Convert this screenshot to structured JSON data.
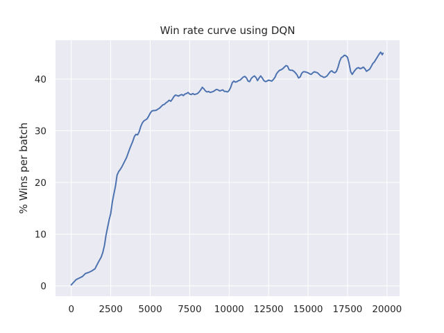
{
  "chart_data": {
    "type": "line",
    "title": "Win rate curve using DQN",
    "xlabel": "",
    "ylabel": "% Wins per batch",
    "xlim": [
      -1000,
      20800
    ],
    "ylim": [
      -2,
      47.5
    ],
    "xticks": [
      0,
      2500,
      5000,
      7500,
      10000,
      12500,
      15000,
      17500,
      20000
    ],
    "xtick_labels": [
      "0",
      "2500",
      "5000",
      "7500",
      "10000",
      "12500",
      "15000",
      "17500",
      "20000"
    ],
    "yticks": [
      0,
      10,
      20,
      30,
      40
    ],
    "ytick_labels": [
      "0",
      "10",
      "20",
      "30",
      "40"
    ],
    "grid": true,
    "legend": "none",
    "colors": {
      "line": "#4c72b0",
      "background": "#eaeaf2",
      "grid": "#ffffff"
    },
    "series": [
      {
        "x": [
          0,
          150,
          300,
          500,
          700,
          900,
          1100,
          1300,
          1500,
          1700,
          1900,
          2000,
          2100,
          2200,
          2300,
          2400,
          2500,
          2600,
          2700,
          2800,
          2900,
          3000,
          3100,
          3200,
          3300,
          3500,
          3700,
          3900,
          4000,
          4100,
          4200,
          4300,
          4400,
          4500,
          4600,
          4700,
          4800,
          4900,
          5000,
          5100,
          5200,
          5300,
          5400,
          5500,
          5600,
          5700,
          5800,
          5900,
          6000,
          6100,
          6200,
          6300,
          6400,
          6500,
          6600,
          6700,
          6800,
          6900,
          7000,
          7100,
          7200,
          7300,
          7400,
          7500,
          7600,
          7700,
          7800,
          7900,
          8000,
          8100,
          8200,
          8300,
          8400,
          8500,
          8600,
          8700,
          8800,
          8900,
          9000,
          9100,
          9200,
          9300,
          9400,
          9500,
          9600,
          9700,
          9800,
          9900,
          10000,
          10100,
          10200,
          10300,
          10400,
          10500,
          10600,
          10700,
          10800,
          10900,
          11000,
          11100,
          11200,
          11300,
          11400,
          11500,
          11600,
          11700,
          11800,
          11900,
          12000,
          12100,
          12200,
          12300,
          12400,
          12500,
          12600,
          12700,
          12800,
          12900,
          13000,
          13100,
          13200,
          13300,
          13400,
          13500,
          13600,
          13700,
          13800,
          13900,
          14000,
          14100,
          14200,
          14300,
          14400,
          14500,
          14600,
          14700,
          14800,
          14900,
          15000,
          15100,
          15200,
          15300,
          15400,
          15500,
          15600,
          15700,
          15800,
          15900,
          16000,
          16100,
          16200,
          16300,
          16400,
          16500,
          16600,
          16700,
          16800,
          16900,
          17000,
          17100,
          17200,
          17300,
          17400,
          17500,
          17600,
          17700,
          17800,
          17900,
          18000,
          18100,
          18200,
          18300,
          18400,
          18500,
          18600,
          18700,
          18800,
          18900,
          19000,
          19100,
          19200,
          19300,
          19400,
          19500,
          19600,
          19700,
          19750
        ],
        "y": [
          0.2,
          0.7,
          1.2,
          1.5,
          1.8,
          2.4,
          2.6,
          2.9,
          3.3,
          4.5,
          5.6,
          6.5,
          7.8,
          9.8,
          11.3,
          12.8,
          14.0,
          16.2,
          17.8,
          19.3,
          21.4,
          22.1,
          22.5,
          23.0,
          23.6,
          24.8,
          26.5,
          28.0,
          28.9,
          29.3,
          29.2,
          29.8,
          30.8,
          31.5,
          31.9,
          32.1,
          32.3,
          32.8,
          33.4,
          33.8,
          33.9,
          33.9,
          34.0,
          34.2,
          34.4,
          34.7,
          35.0,
          35.1,
          35.4,
          35.6,
          35.9,
          35.7,
          36.1,
          36.6,
          36.9,
          36.8,
          36.7,
          36.9,
          37.0,
          36.8,
          37.1,
          37.2,
          37.4,
          37.1,
          37.0,
          37.2,
          37.0,
          37.1,
          37.2,
          37.5,
          37.9,
          38.4,
          38.1,
          37.7,
          37.5,
          37.6,
          37.4,
          37.5,
          37.6,
          37.8,
          38.0,
          37.9,
          37.7,
          37.8,
          37.9,
          37.6,
          37.6,
          37.5,
          37.8,
          38.4,
          39.3,
          39.6,
          39.4,
          39.5,
          39.7,
          39.8,
          40.1,
          40.4,
          40.5,
          40.2,
          39.6,
          39.5,
          40.1,
          40.4,
          40.6,
          40.3,
          39.7,
          40.2,
          40.6,
          40.2,
          39.7,
          39.5,
          39.6,
          39.8,
          39.7,
          39.6,
          39.9,
          40.3,
          41.0,
          41.4,
          41.7,
          41.8,
          42.0,
          42.3,
          42.6,
          42.5,
          41.8,
          41.7,
          41.7,
          41.5,
          41.2,
          40.8,
          40.2,
          40.4,
          41.1,
          41.4,
          41.4,
          41.3,
          41.2,
          41.0,
          40.9,
          41.2,
          41.4,
          41.3,
          41.2,
          40.9,
          40.6,
          40.5,
          40.3,
          40.4,
          40.6,
          41.0,
          41.4,
          41.6,
          41.3,
          41.2,
          41.5,
          42.3,
          43.4,
          44.1,
          44.3,
          44.6,
          44.5,
          44.2,
          43.0,
          41.4,
          40.9,
          41.4,
          41.8,
          42.1,
          42.2,
          42.0,
          42.1,
          42.3,
          42.0,
          41.5,
          41.7,
          41.9,
          42.4,
          43.0,
          43.3,
          43.8,
          44.3,
          44.8,
          45.2,
          44.7,
          45.0
        ]
      }
    ]
  }
}
